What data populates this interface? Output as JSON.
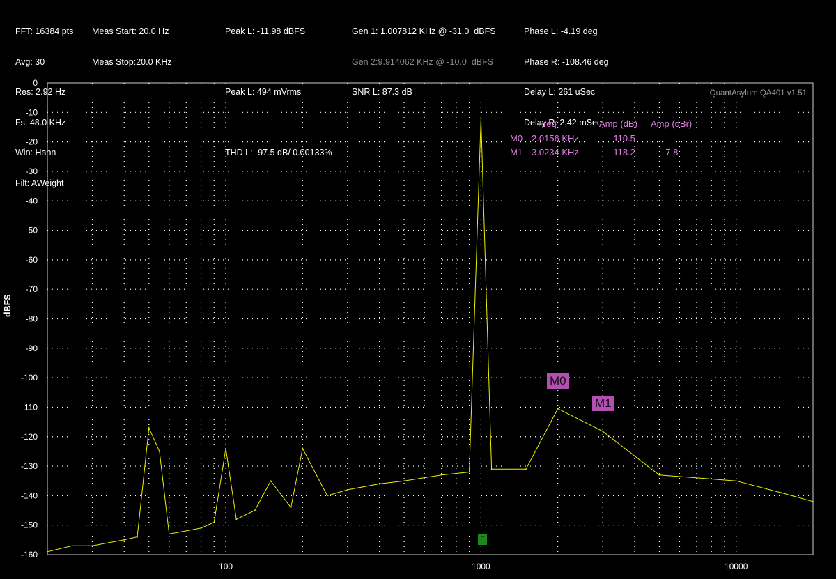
{
  "header": {
    "col1": [
      "FFT: 16384 pts",
      "Avg: 30",
      "Res: 2.92 Hz",
      "Fs: 48.0 KHz",
      "Win: Hann",
      "Filt: AWeight"
    ],
    "col2": [
      "Meas Start: 20.0 Hz",
      "Meas Stop:20.0 KHz"
    ],
    "col3": [
      "Peak L: -11.98 dBFS",
      "",
      "Peak L: 494 mVrms",
      "",
      "THD L: -97.5 dB/ 0.00133%"
    ],
    "gen1": "Gen 1: 1.007812 KHz @ -31.0  dBFS",
    "gen2": "Gen 2:9.914062 KHz @ -10.0  dBFS",
    "snr": "SNR L: 87.3 dB",
    "col5": [
      "Phase L: -4.19 deg",
      "Phase R: -108.46 deg",
      "Delay L: 261 uSec",
      "Delay R: 2.42 mSec"
    ]
  },
  "brand": "QuantAsylum QA401 v1.51",
  "y_axis_title": "dBFS",
  "markers_table": {
    "headers": [
      "Freq",
      "Amp (dB)",
      "Amp (dBr)"
    ],
    "rows": [
      {
        "name": "M0",
        "freq": "2.0156 KHz",
        "amp_db": "-110.5",
        "amp_dbr": "---"
      },
      {
        "name": "M1",
        "freq": "3.0234 KHz",
        "amp_db": "-118.2",
        "amp_dbr": "-7.8"
      }
    ]
  },
  "marker_labels": [
    "M0",
    "M1"
  ],
  "fundamental_badge": "F",
  "colors": {
    "trace": "#f0f000",
    "marker": "#b24fb2",
    "marker_text": "#e07ee0",
    "grid": "#ffffff"
  },
  "chart_data": {
    "type": "line",
    "xlabel": "",
    "ylabel": "dBFS",
    "x_scale": "log",
    "xlim": [
      20,
      20000
    ],
    "ylim": [
      -160,
      0
    ],
    "x_ticks": [
      "100",
      "1000",
      "10000"
    ],
    "y_ticks": [
      "0",
      "-10",
      "-20",
      "-30",
      "-40",
      "-50",
      "-60",
      "-70",
      "-80",
      "-90",
      "-100",
      "-110",
      "-120",
      "-130",
      "-140",
      "-150",
      "-160"
    ],
    "series": [
      {
        "x": [
          20,
          25,
          30,
          40,
          45,
          50,
          55,
          60,
          80,
          90,
          100,
          110,
          130,
          150,
          180,
          200,
          250,
          300,
          400,
          500,
          700,
          900,
          1000,
          1100,
          1500,
          2000,
          3000,
          5000,
          10000,
          15000,
          20000
        ],
        "y": [
          -159,
          -157,
          -157,
          -155,
          -154,
          -117,
          -125,
          -153,
          -151,
          -149,
          -124,
          -148,
          -145,
          -135,
          -144,
          -124,
          -140,
          -138,
          -136,
          -135,
          -133,
          -132,
          -12,
          -131,
          -131,
          -110.5,
          -118.2,
          -133,
          -135,
          -139,
          -142
        ]
      }
    ]
  }
}
